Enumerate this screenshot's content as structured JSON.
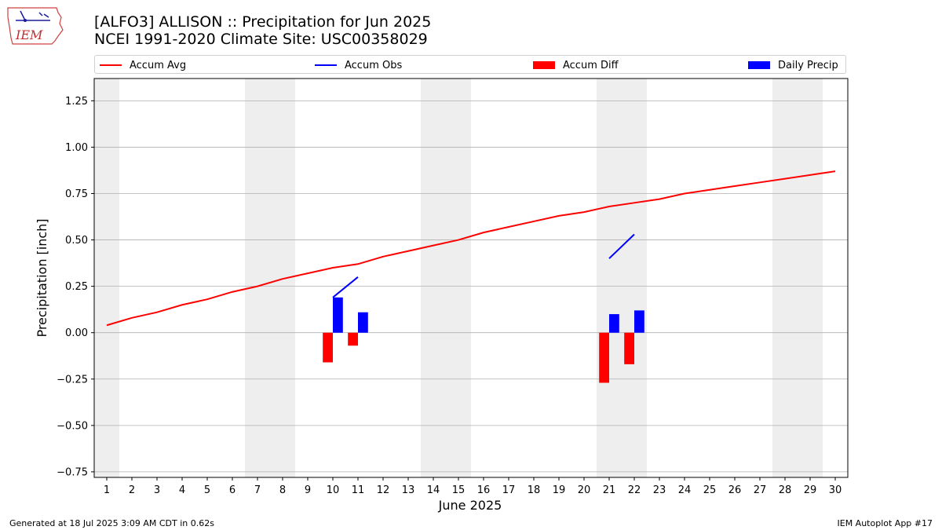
{
  "logo": {
    "text": "IEM"
  },
  "header": {
    "title_line1": "[ALFO3] ALLISON :: Precipitation for Jun 2025",
    "title_line2": "NCEI 1991-2020 Climate Site: USC00358029"
  },
  "legend": {
    "items": [
      {
        "label": "Accum Avg",
        "kind": "line",
        "color": "#ff0000"
      },
      {
        "label": "Accum Obs",
        "kind": "line",
        "color": "#0000ff"
      },
      {
        "label": "Accum Diff",
        "kind": "patch",
        "color": "#ff0000"
      },
      {
        "label": "Daily Precip",
        "kind": "patch",
        "color": "#0000ff"
      }
    ]
  },
  "chart_data": {
    "type": "bar",
    "xlabel": "June 2025",
    "ylabel": "Precipitation [inch]",
    "xlim": [
      0.5,
      30.5
    ],
    "ylim": [
      -0.78,
      1.37
    ],
    "x_ticks": [
      1,
      2,
      3,
      4,
      5,
      6,
      7,
      8,
      9,
      10,
      11,
      12,
      13,
      14,
      15,
      16,
      17,
      18,
      19,
      20,
      21,
      22,
      23,
      24,
      25,
      26,
      27,
      28,
      29,
      30
    ],
    "y_ticks": [
      -0.75,
      -0.5,
      -0.25,
      0.0,
      0.25,
      0.5,
      0.75,
      1.0,
      1.25
    ],
    "y_tick_labels": [
      "−0.75",
      "−0.50",
      "−0.25",
      "0.00",
      "0.25",
      "0.50",
      "0.75",
      "1.00",
      "1.25"
    ],
    "grid": "horizontal",
    "weekend_shading": [
      [
        0.5,
        1.5
      ],
      [
        6.5,
        8.5
      ],
      [
        13.5,
        15.5
      ],
      [
        20.5,
        22.5
      ],
      [
        27.5,
        29.5
      ]
    ],
    "colors": {
      "avg": "#ff0000",
      "obs": "#0000ff",
      "diff": "#ff0000",
      "daily": "#0000ff",
      "shade": "#eeeeee"
    },
    "series": [
      {
        "name": "Accum Avg",
        "type": "line",
        "x": [
          1,
          2,
          3,
          4,
          5,
          6,
          7,
          8,
          9,
          10,
          11,
          12,
          13,
          14,
          15,
          16,
          17,
          18,
          19,
          20,
          21,
          22,
          23,
          24,
          25,
          26,
          27,
          28,
          29,
          30
        ],
        "values": [
          0.04,
          0.08,
          0.11,
          0.15,
          0.18,
          0.22,
          0.25,
          0.29,
          0.32,
          0.35,
          0.37,
          0.41,
          0.44,
          0.47,
          0.5,
          0.54,
          0.57,
          0.6,
          0.63,
          0.65,
          0.68,
          0.7,
          0.72,
          0.75,
          0.77,
          0.79,
          0.81,
          0.83,
          0.85,
          0.87
        ]
      },
      {
        "name": "Accum Obs",
        "type": "line",
        "segments": [
          {
            "x": [
              10,
              11
            ],
            "values": [
              0.19,
              0.3
            ]
          },
          {
            "x": [
              21,
              22
            ],
            "values": [
              0.4,
              0.53
            ]
          }
        ]
      },
      {
        "name": "Accum Diff",
        "type": "bar",
        "x": [
          10,
          11,
          21,
          22
        ],
        "values": [
          -0.16,
          -0.07,
          -0.27,
          -0.17
        ]
      },
      {
        "name": "Daily Precip",
        "type": "bar",
        "x": [
          10,
          11,
          21,
          22
        ],
        "values": [
          0.19,
          0.11,
          0.1,
          0.12
        ]
      }
    ]
  },
  "footer": {
    "left": "Generated at 18 Jul 2025 3:09 AM CDT in 0.62s",
    "right": "IEM Autoplot App #17"
  }
}
